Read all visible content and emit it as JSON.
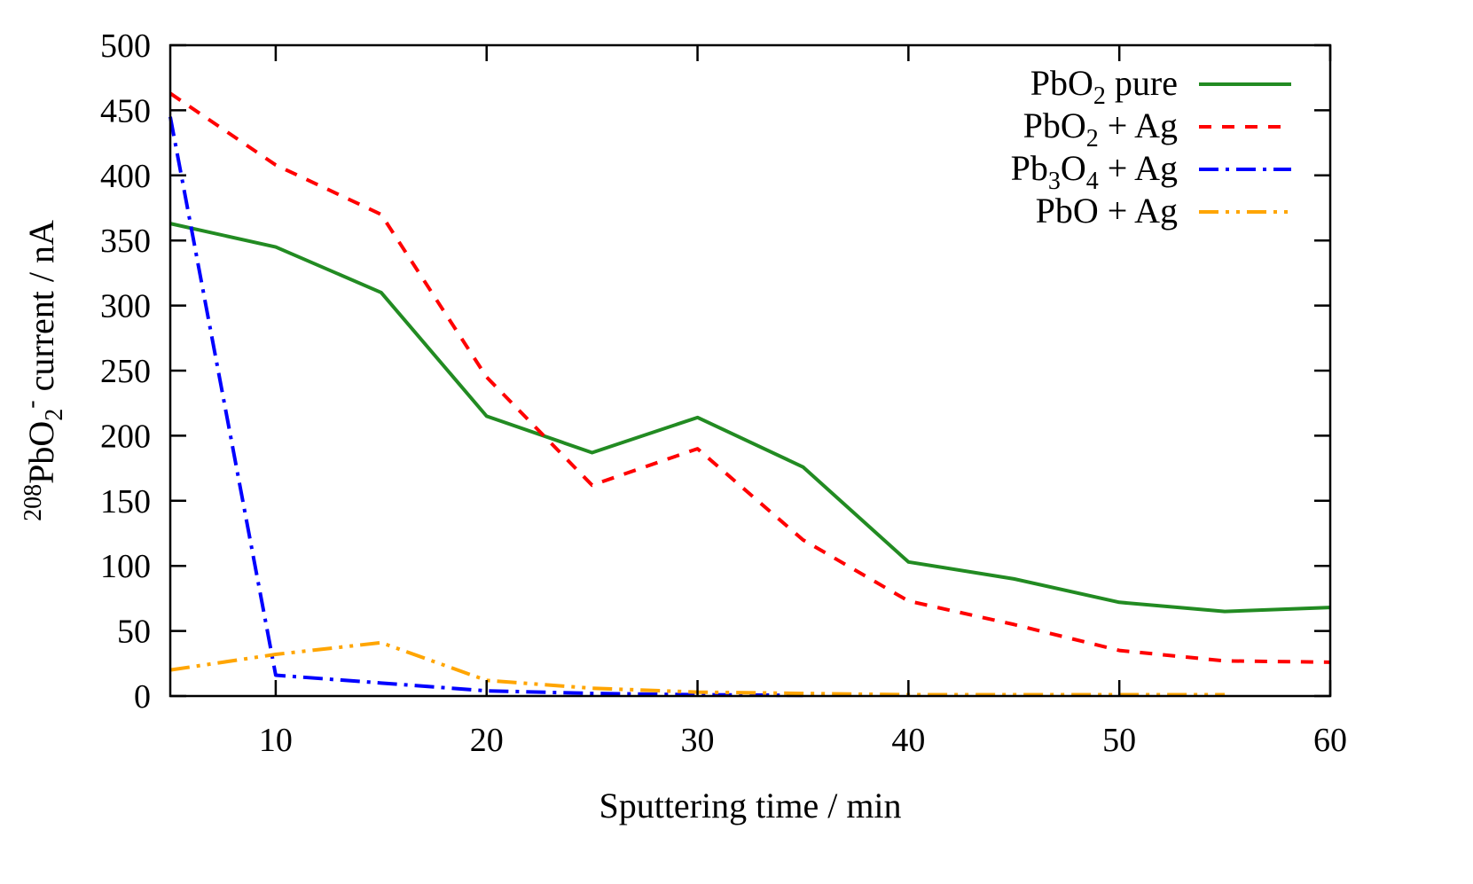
{
  "chart_data": {
    "type": "line",
    "xlabel": "Sputtering time / min",
    "ylabel": {
      "sup": "208",
      "main": "PbO",
      "sub": "2",
      "sup2": "-",
      "rest": " current / nA"
    },
    "xlim": [
      5,
      60
    ],
    "ylim": [
      0,
      500
    ],
    "xticks": [
      10,
      20,
      30,
      40,
      50,
      60
    ],
    "yticks": [
      0,
      50,
      100,
      150,
      200,
      250,
      300,
      350,
      400,
      450,
      500
    ],
    "grid": false,
    "legend_position": "top-right",
    "series": [
      {
        "name": "PbO2 pure",
        "label_parts": [
          "PbO",
          "2",
          " pure"
        ],
        "color": "#228B22",
        "style": "solid",
        "x": [
          5,
          10,
          15,
          20,
          25,
          30,
          35,
          40,
          45,
          50,
          55,
          60
        ],
        "y": [
          363,
          345,
          310,
          215,
          187,
          214,
          176,
          103,
          90,
          72,
          65,
          68
        ]
      },
      {
        "name": "PbO2 + Ag",
        "label_parts": [
          "PbO",
          "2",
          " + Ag"
        ],
        "color": "#FF0000",
        "style": "dashed",
        "x": [
          5,
          10,
          15,
          20,
          25,
          30,
          35,
          40,
          45,
          50,
          55,
          60
        ],
        "y": [
          463,
          408,
          370,
          245,
          162,
          190,
          120,
          73,
          55,
          35,
          27,
          26
        ]
      },
      {
        "name": "Pb3O4 + Ag",
        "label_parts": [
          "Pb",
          "3",
          "O",
          "4",
          " + Ag"
        ],
        "color": "#0000FF",
        "style": "dash-dot",
        "x": [
          5,
          10,
          15,
          20,
          25,
          30,
          35
        ],
        "y": [
          445,
          16,
          10,
          4,
          2,
          1,
          0.5
        ]
      },
      {
        "name": "PbO + Ag",
        "label_parts": [
          "PbO + Ag"
        ],
        "color": "#FFA500",
        "style": "dash-dot-dot",
        "x": [
          5,
          10,
          15,
          20,
          25,
          30,
          35,
          40,
          45,
          50,
          55
        ],
        "y": [
          20,
          32,
          41,
          12,
          6,
          3,
          2,
          1,
          1,
          1,
          1
        ]
      }
    ]
  }
}
